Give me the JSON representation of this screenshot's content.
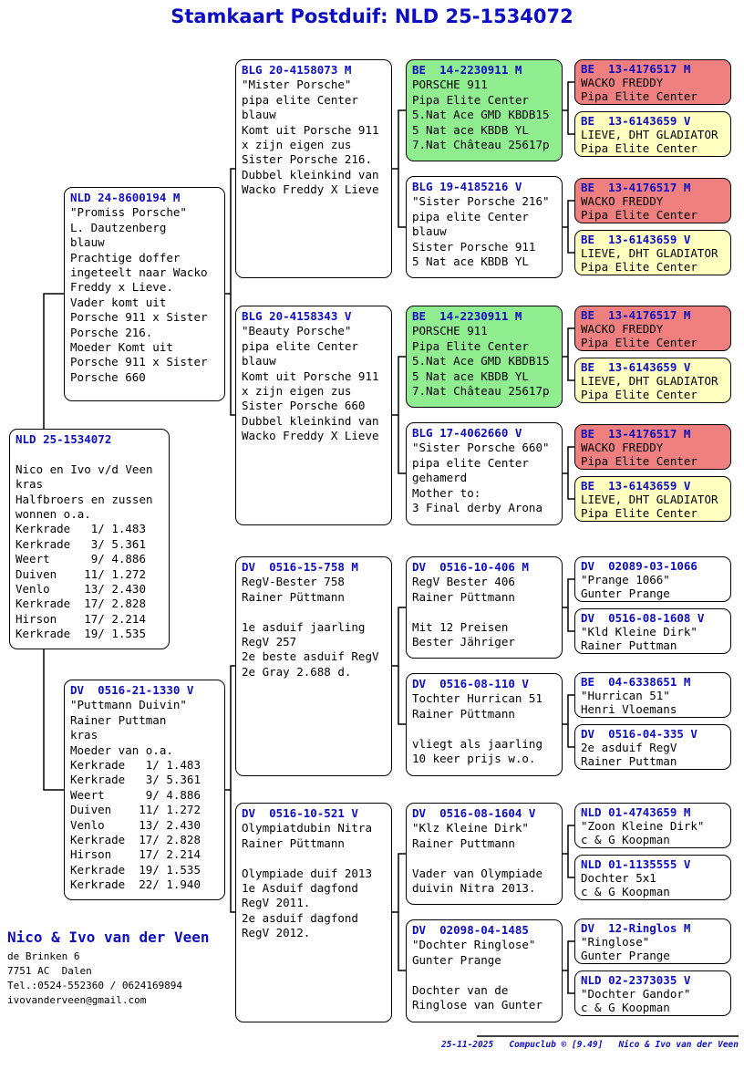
{
  "title": "Stamkaart Postduif: NLD 25-1534072",
  "colors": {
    "header_blue": "#0d0dc4",
    "highlight_green": "#90ee90",
    "highlight_red": "#f08080",
    "highlight_yellow": "#ffffc0"
  },
  "boxes": {
    "subject": {
      "header": "NLD 25-1534072",
      "lines": [
        "",
        "Nico en Ivo v/d Veen",
        "kras",
        "Halfbroers en zussen",
        "wonnen o.a.",
        "Kerkrade   1/ 1.483",
        "Kerkrade   3/ 5.361",
        "Weert      9/ 4.886",
        "Duiven    11/ 1.272",
        "Venlo     13/ 2.430",
        "Kerkrade  17/ 2.828",
        "Hirson    17/ 2.214",
        "Kerkrade  19/ 1.535"
      ]
    },
    "sire": {
      "header": "NLD 24-8600194 M",
      "lines": [
        "\"Promiss Porsche\"",
        "L. Dautzenberg",
        "blauw",
        "Prachtige doffer",
        "ingeteelt naar Wacko",
        "Freddy x Lieve.",
        "Vader komt uit",
        "Porsche 911 x Sister",
        "Porsche 216.",
        "Moeder Komt uit",
        "Porsche 911 x Sister",
        "Porsche 660"
      ]
    },
    "dam": {
      "header": "DV  0516-21-1330 V",
      "lines": [
        "\"Puttmann Duivin\"",
        "Rainer Puttman",
        "kras",
        "Moeder van o.a.",
        "Kerkrade   1/ 1.483",
        "Kerkrade   3/ 5.361",
        "Weert      9/ 4.886",
        "Duiven    11/ 1.272",
        "Venlo     13/ 2.430",
        "Kerkrade  17/ 2.828",
        "Hirson    17/ 2.214",
        "Kerkrade  19/ 1.535",
        "Kerkrade  22/ 1.940"
      ]
    },
    "gp_ss": {
      "header": "BLG 20-4158073 M",
      "lines": [
        "\"Mister Porsche\"",
        "pipa elite Center",
        "blauw",
        "Komt uit Porsche 911",
        "x zijn eigen zus",
        "Sister Porsche 216.",
        "Dubbel kleinkind van",
        "Wacko Freddy X Lieve"
      ]
    },
    "gp_sd": {
      "header": "BLG 20-4158343 V",
      "lines": [
        "\"Beauty Porsche\"",
        "pipa elite Center",
        "blauw",
        "Komt uit Porsche 911",
        "x zijn eigen zus",
        "Sister Porsche 660",
        "Dubbel kleinkind van",
        "Wacko Freddy X Lieve"
      ]
    },
    "gp_ds": {
      "header": "DV  0516-15-758 M",
      "lines": [
        "RegV-Bester 758",
        "Rainer Püttmann",
        "",
        "1e asduif jaarling",
        "RegV 257",
        "2e beste asduif RegV",
        "2e Gray 2.688 d."
      ]
    },
    "gp_dd": {
      "header": "DV  0516-10-521 V",
      "lines": [
        "Olympiatdubin Nitra",
        "Rainer Püttmann",
        "",
        "Olympiade duif 2013",
        "1e Asduif dagfond",
        "RegV 2011.",
        "2e asduif dagfond",
        "RegV 2012."
      ]
    },
    "ggp_porsche911": {
      "header": "BE  14-2230911 M",
      "lines": [
        "PORSCHE 911",
        "Pipa Elite Center",
        "5.Nat Ace GMD KBDB15",
        "5 Nat ace KBDB YL",
        "7.Nat Château 25617p"
      ]
    },
    "ggp_sister216": {
      "header": "BLG 19-4185216 V",
      "lines": [
        "\"Sister Porsche 216\"",
        "pipa elite Center",
        "blauw",
        "Sister Porsche 911",
        "5 Nat ace KBDB YL"
      ]
    },
    "ggp_sister660": {
      "header": "BLG 17-4062660 V",
      "lines": [
        "\"Sister Porsche 660\"",
        "pipa elite Center",
        "gehamerd",
        "Mother to:",
        "3 Final derby Arona"
      ]
    },
    "ggp_bester406": {
      "header": "DV  0516-10-406 M",
      "lines": [
        "RegV Bester 406",
        "Rainer Püttmann",
        "",
        "Mit 12 Preisen",
        "Bester Jähriger"
      ]
    },
    "ggp_hurrican110": {
      "header": "DV  0516-08-110 V",
      "lines": [
        "Tochter Hurrican 51",
        "Rainer Püttmann",
        "",
        "vliegt als jaarling",
        "10 keer prijs w.o."
      ]
    },
    "ggp_kleinedirk1604": {
      "header": "DV  0516-08-1604 V",
      "lines": [
        "\"Klz Kleine Dirk\"",
        "Rainer Puttmann",
        "",
        "Vader van Olympiade",
        "duivin Nitra 2013."
      ]
    },
    "ggp_ringlose1485": {
      "header": "DV  02098-04-1485",
      "lines": [
        "\"Dochter Ringlose\"",
        "Gunter Prange",
        "",
        "Dochter van de",
        "Ringlose van Gunter"
      ]
    },
    "g4_wacko": {
      "header": "BE  13-4176517 M",
      "lines": [
        "WACKO FREDDY",
        "Pipa Elite Center"
      ]
    },
    "g4_lieve": {
      "header": "BE  13-6143659 V",
      "lines": [
        "LIEVE, DHT GLADIATOR",
        "Pipa Elite Center"
      ]
    },
    "g4_prange1066": {
      "header": "DV  02089-03-1066",
      "lines": [
        "\"Prange 1066\"",
        "Gunter Prange"
      ]
    },
    "g4_kleinedirk1608": {
      "header": "DV  0516-08-1608 V",
      "lines": [
        "\"Kld Kleine Dirk\"",
        "Rainer Puttman"
      ]
    },
    "g4_hurrican51": {
      "header": "BE  04-6338651 M",
      "lines": [
        "\"Hurrican 51\"",
        "Henri Vloemans"
      ]
    },
    "g4_asduif335": {
      "header": "DV  0516-04-335 V",
      "lines": [
        "2e asduif RegV",
        "Rainer Puttman"
      ]
    },
    "g4_zoonkleinedirk": {
      "header": "NLD 01-4743659 M",
      "lines": [
        "\"Zoon Kleine Dirk\"",
        "c & G Koopman"
      ]
    },
    "g4_dochter5x1": {
      "header": "NLD 01-1135555 V",
      "lines": [
        "Dochter 5x1",
        "c & G Koopman"
      ]
    },
    "g4_ringlos": {
      "header": "DV  12-Ringlos M",
      "lines": [
        "\"Ringlose\"",
        "Gunter Prange"
      ]
    },
    "g4_dochtergandor": {
      "header": "NLD 02-2373035 V",
      "lines": [
        "\"Dochter Gandor\"",
        "c & G Koopman"
      ]
    }
  },
  "owner": {
    "name": "Nico & Ivo van der Veen",
    "address": [
      "de Brinken 6",
      "7751 AC  Dalen",
      "Tel.:0524-552360 / 0624169894",
      "ivovanderveen@gmail.com"
    ]
  },
  "credit": "25-11-2025   Compuclub © [9.49]   Nico & Ivo van der Veen"
}
